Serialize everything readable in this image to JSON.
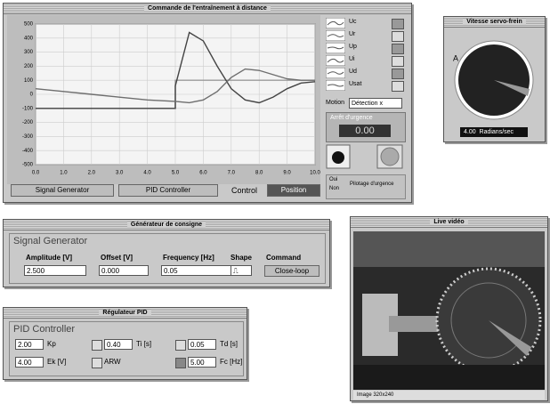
{
  "main_window": {
    "title": "Commande de l'entraînement à distance",
    "chart": {
      "type": "line",
      "x": [
        0,
        1,
        2,
        3,
        4,
        5,
        5,
        5.5,
        6,
        6.5,
        7,
        7.5,
        8,
        8.5,
        9,
        9.5,
        10
      ],
      "series": [
        {
          "color": "#9a9a9a",
          "values": [
            -100,
            -100,
            -100,
            -100,
            -100,
            -100,
            100,
            100,
            100,
            100,
            100,
            100,
            100,
            100,
            100,
            100,
            100
          ]
        },
        {
          "color": "#444444",
          "values": [
            -100,
            -100,
            -100,
            -100,
            -100,
            -100,
            60,
            440,
            380,
            200,
            40,
            -40,
            -60,
            -20,
            40,
            80,
            90
          ]
        },
        {
          "color": "#6e6e6e",
          "values": [
            40,
            20,
            0,
            -20,
            -40,
            -50,
            -50,
            -60,
            -40,
            20,
            120,
            180,
            170,
            140,
            110,
            100,
            100
          ]
        }
      ],
      "ylim": [
        -500,
        500
      ],
      "yticks": [
        500,
        400,
        300,
        200,
        100,
        0,
        -100,
        -200,
        -300,
        -400,
        -500
      ],
      "xlim": [
        0,
        10
      ],
      "xticks": [
        {
          "value": 0,
          "label": "0.0"
        },
        {
          "value": 1,
          "label": "1.0"
        },
        {
          "value": 2,
          "label": "2.0"
        },
        {
          "value": 3,
          "label": "3.0"
        },
        {
          "value": 4,
          "label": "4.0"
        },
        {
          "value": 5,
          "label": "5.0"
        },
        {
          "value": 6,
          "label": "6.0"
        },
        {
          "value": 7,
          "label": "7.0"
        },
        {
          "value": 8,
          "label": "8.0"
        },
        {
          "value": 9,
          "label": "9.0"
        },
        {
          "value": 10,
          "label": "10.0"
        }
      ],
      "grid": true
    },
    "legend": [
      "Uc",
      "Ur",
      "Up",
      "Ui",
      "Ud",
      "Usat"
    ],
    "motion_label": "Motion",
    "motion_value": "Détection x",
    "emergency_label": "Arrêt d'urgence",
    "emergency_value": "0.00",
    "tab_signal": "Signal Generator",
    "tab_pid": "PID Controller",
    "control_label": "Control",
    "control_value": "Position",
    "option_on": "Oui",
    "option_off": "Non",
    "option_label": "Pilotage d'urgence"
  },
  "speed_window": {
    "title": "Vitesse servo-frein",
    "dial_label": "A",
    "value": "4.00",
    "unit": "Radians/sec"
  },
  "signal_window": {
    "title": "Générateur de consigne",
    "heading": "Signal Generator",
    "fields": [
      {
        "label": "Amplitude [V]",
        "value": "2.500"
      },
      {
        "label": "Offset [V]",
        "value": "0.000"
      },
      {
        "label": "Frequency [Hz]",
        "value": "0.05"
      }
    ],
    "shape_label": "Shape",
    "command_label": "Command",
    "command_value": "Close-loop"
  },
  "pid_window": {
    "title": "Régulateur PID",
    "heading": "PID Controller",
    "fields": [
      {
        "value": "2.00",
        "label": "Kp"
      },
      {
        "value": "0.40",
        "label": "Ti [s]"
      },
      {
        "value": "0.05",
        "label": "Td [s]"
      },
      {
        "value": "4.00",
        "label": "Ek [V]"
      },
      {
        "label": "ARW"
      },
      {
        "value": "5.00",
        "label": "Fc [Hz]"
      }
    ]
  },
  "video_window": {
    "title": "Live vidéo",
    "status": "Image 320x240"
  }
}
